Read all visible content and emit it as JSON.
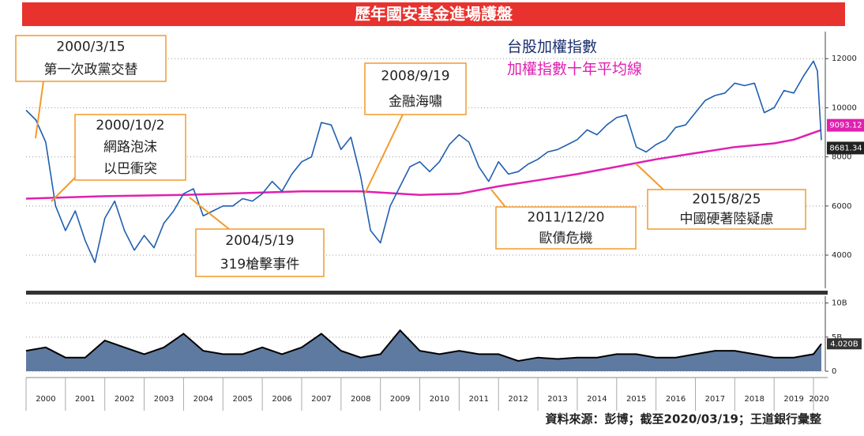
{
  "chart_data": {
    "type": "line",
    "title": "歷年國安基金進場護盤",
    "source": "資料來源：彭博；截至2020/03/19；王道銀行彙整",
    "xlim": [
      2000,
      2020.3
    ],
    "xticks": [
      2000,
      2001,
      2002,
      2003,
      2004,
      2005,
      2006,
      2007,
      2008,
      2009,
      2010,
      2011,
      2012,
      2013,
      2014,
      2015,
      2016,
      2017,
      2018,
      2019,
      2020
    ],
    "ylim": [
      2650,
      13100
    ],
    "yticks": [
      4000,
      6000,
      8000,
      10000,
      12000
    ],
    "grid": true,
    "series": [
      {
        "name": "台股加權指數",
        "color": "#1f5fb0",
        "legend_color": "#1a2f6e",
        "end_value_label": "8681.34",
        "x": [
          2000,
          2000.25,
          2000.5,
          2000.75,
          2001,
          2001.25,
          2001.5,
          2001.75,
          2002,
          2002.25,
          2002.5,
          2002.75,
          2003,
          2003.25,
          2003.5,
          2003.75,
          2004,
          2004.25,
          2004.5,
          2004.75,
          2005,
          2005.25,
          2005.5,
          2005.75,
          2006,
          2006.25,
          2006.5,
          2006.75,
          2007,
          2007.25,
          2007.5,
          2007.75,
          2008,
          2008.25,
          2008.5,
          2008.75,
          2009,
          2009.25,
          2009.5,
          2009.75,
          2010,
          2010.25,
          2010.5,
          2010.75,
          2011,
          2011.25,
          2011.5,
          2011.75,
          2012,
          2012.25,
          2012.5,
          2012.75,
          2013,
          2013.25,
          2013.5,
          2013.75,
          2014,
          2014.25,
          2014.5,
          2014.75,
          2015,
          2015.25,
          2015.5,
          2015.75,
          2016,
          2016.25,
          2016.5,
          2016.75,
          2017,
          2017.25,
          2017.5,
          2017.75,
          2018,
          2018.25,
          2018.5,
          2018.75,
          2019,
          2019.25,
          2019.5,
          2019.75,
          2020,
          2020.1,
          2020.2
        ],
        "values": [
          9900,
          9500,
          8600,
          6000,
          5000,
          5800,
          4600,
          3700,
          5500,
          6200,
          5000,
          4200,
          4800,
          4300,
          5300,
          5800,
          6500,
          6700,
          5600,
          5800,
          6000,
          6000,
          6300,
          6200,
          6500,
          7000,
          6600,
          7300,
          7800,
          8000,
          9400,
          9300,
          8300,
          8800,
          7200,
          5000,
          4500,
          6000,
          6800,
          7600,
          7800,
          7400,
          7800,
          8500,
          8900,
          8600,
          7600,
          7000,
          7800,
          7300,
          7400,
          7700,
          7900,
          8200,
          8300,
          8500,
          8700,
          9100,
          8900,
          9300,
          9600,
          9700,
          8400,
          8200,
          8500,
          8700,
          9200,
          9300,
          9800,
          10300,
          10500,
          10600,
          11000,
          10900,
          11000,
          9800,
          10000,
          10700,
          10600,
          11300,
          11900,
          11500,
          8681.34
        ]
      },
      {
        "name": "加權指數十年平均線",
        "color": "#e020b0",
        "end_value_label": "9093.12",
        "x": [
          2000,
          2002,
          2004,
          2005,
          2007,
          2008.5,
          2010,
          2011,
          2012,
          2013,
          2014,
          2015,
          2016,
          2017,
          2018,
          2019,
          2019.5,
          2020.2
        ],
        "values": [
          6300,
          6400,
          6450,
          6500,
          6600,
          6600,
          6450,
          6500,
          6800,
          7050,
          7300,
          7600,
          7900,
          8150,
          8400,
          8550,
          8700,
          9093.12
        ]
      }
    ],
    "volume": {
      "color": "#5f7aa0",
      "line_color": "#000000",
      "end_value_label": "4.020B",
      "ylim": [
        0,
        11
      ],
      "yticks": [
        0,
        {
          "value": 5,
          "label": "5B"
        },
        {
          "value": 10,
          "label": "10B"
        }
      ],
      "x": [
        2000,
        2000.5,
        2001,
        2001.5,
        2002,
        2002.5,
        2003,
        2003.5,
        2004,
        2004.5,
        2005,
        2005.5,
        2006,
        2006.5,
        2007,
        2007.5,
        2008,
        2008.5,
        2009,
        2009.5,
        2010,
        2010.5,
        2011,
        2011.5,
        2012,
        2012.5,
        2013,
        2013.5,
        2014,
        2014.5,
        2015,
        2015.5,
        2016,
        2016.5,
        2017,
        2017.5,
        2018,
        2018.5,
        2019,
        2019.5,
        2020,
        2020.2
      ],
      "values": [
        3,
        3.5,
        2,
        2,
        4.5,
        3.5,
        2.5,
        3.5,
        5.5,
        3,
        2.5,
        2.5,
        3.5,
        2.5,
        3.5,
        5.5,
        3,
        2,
        2.5,
        6,
        3,
        2.5,
        3,
        2.5,
        2.5,
        1.5,
        2,
        1.8,
        2,
        2,
        2.5,
        2.5,
        2,
        2,
        2.5,
        3,
        3,
        2.5,
        2,
        2,
        2.5,
        4.02
      ]
    },
    "annotations": [
      {
        "lines": [
          "2000/3/15",
          "第一次政黨交替"
        ]
      },
      {
        "lines": [
          "2000/10/2",
          "網路泡沫",
          "以巴衝突"
        ]
      },
      {
        "lines": [
          "2008/9/19",
          "金融海嘯"
        ]
      },
      {
        "lines": [
          "2004/5/19",
          "319槍擊事件"
        ]
      },
      {
        "lines": [
          "2011/12/20",
          "歐債危機"
        ]
      },
      {
        "lines": [
          "2015/8/25",
          "中國硬著陸疑慮"
        ]
      }
    ]
  }
}
